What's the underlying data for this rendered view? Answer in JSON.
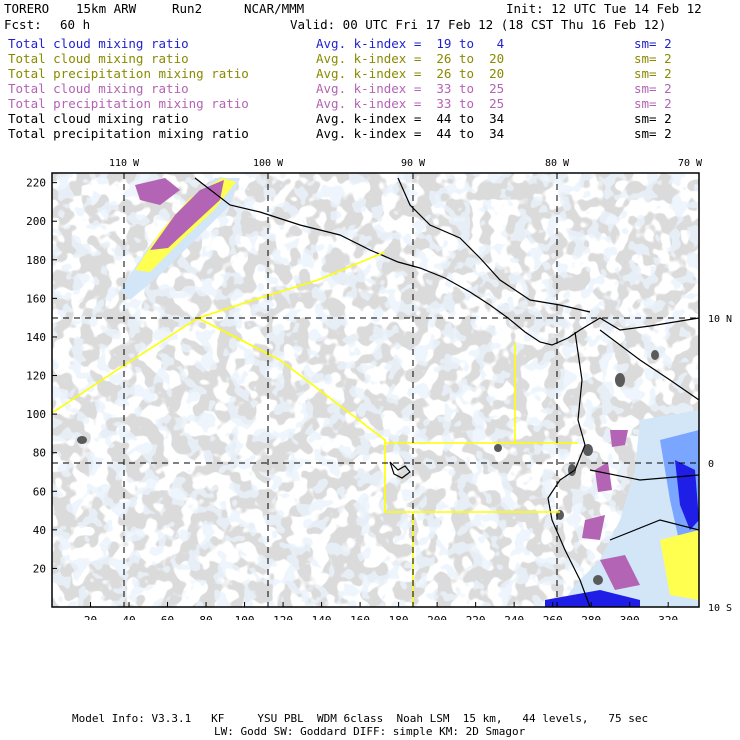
{
  "header": {
    "model": "TORERO",
    "resolution": "15km ARW",
    "run": "Run2",
    "org": "NCAR/MMM",
    "init": "Init: 12 UTC Tue 14 Feb 12",
    "fcst_label": "Fcst:",
    "fcst_value": "60 h",
    "valid": "Valid: 00 UTC Fri 17 Feb 12 (18 CST Thu 16 Feb 12)"
  },
  "legend_rows": [
    {
      "field": "Total cloud mixing ratio",
      "kindex": "Avg. k-index =  19 to   4",
      "sm": "sm= 2",
      "color": "#1f1fd0"
    },
    {
      "field": "Total cloud mixing ratio",
      "kindex": "Avg. k-index =  26 to  20",
      "sm": "sm= 2",
      "color": "#8a8a00"
    },
    {
      "field": "Total precipitation mixing ratio",
      "kindex": "Avg. k-index =  26 to  20",
      "sm": "sm= 2",
      "color": "#8a8a00"
    },
    {
      "field": "Total cloud mixing ratio",
      "kindex": "Avg. k-index =  33 to  25",
      "sm": "sm= 2",
      "color": "#b463b4"
    },
    {
      "field": "Total precipitation mixing ratio",
      "kindex": "Avg. k-index =  33 to  25",
      "sm": "sm= 2",
      "color": "#b463b4"
    },
    {
      "field": "Total cloud mixing ratio",
      "kindex": "Avg. k-index =  44 to  34",
      "sm": "sm= 2",
      "color": "#000000"
    },
    {
      "field": "Total precipitation mixing ratio",
      "kindex": "Avg. k-index =  44 to  34",
      "sm": "sm= 2",
      "color": "#000000"
    }
  ],
  "map": {
    "x_ticks": [
      "20",
      "40",
      "60",
      "80",
      "100",
      "120",
      "140",
      "160",
      "180",
      "200",
      "220",
      "240",
      "260",
      "280",
      "300",
      "320"
    ],
    "y_ticks": [
      "20",
      "40",
      "60",
      "80",
      "100",
      "120",
      "140",
      "160",
      "180",
      "200",
      "220"
    ],
    "lon_labels": [
      "110 W",
      "100 W",
      "90 W",
      "80 W",
      "70 W"
    ],
    "lat_labels": [
      "10 N",
      "0",
      "10 S"
    ],
    "colors": {
      "gray_cloud": "#b4b4b4",
      "dark_core": "#5a5a5a",
      "light_blue": "#d2e6f8",
      "mid_blue": "#7aa6ff",
      "deep_blue": "#1e1ee6",
      "yellow": "#ffff50",
      "purple": "#b464b4",
      "boundary_yellow": "#ffff00",
      "frame": "#000000"
    }
  },
  "footer": {
    "line1": "Model Info: V3.3.1   KF     YSU PBL  WDM 6class  Noah LSM  15 km,   44 levels,   75 sec",
    "line2": "LW: Godd SW: Goddard DIFF: simple KM: 2D Smagor"
  }
}
